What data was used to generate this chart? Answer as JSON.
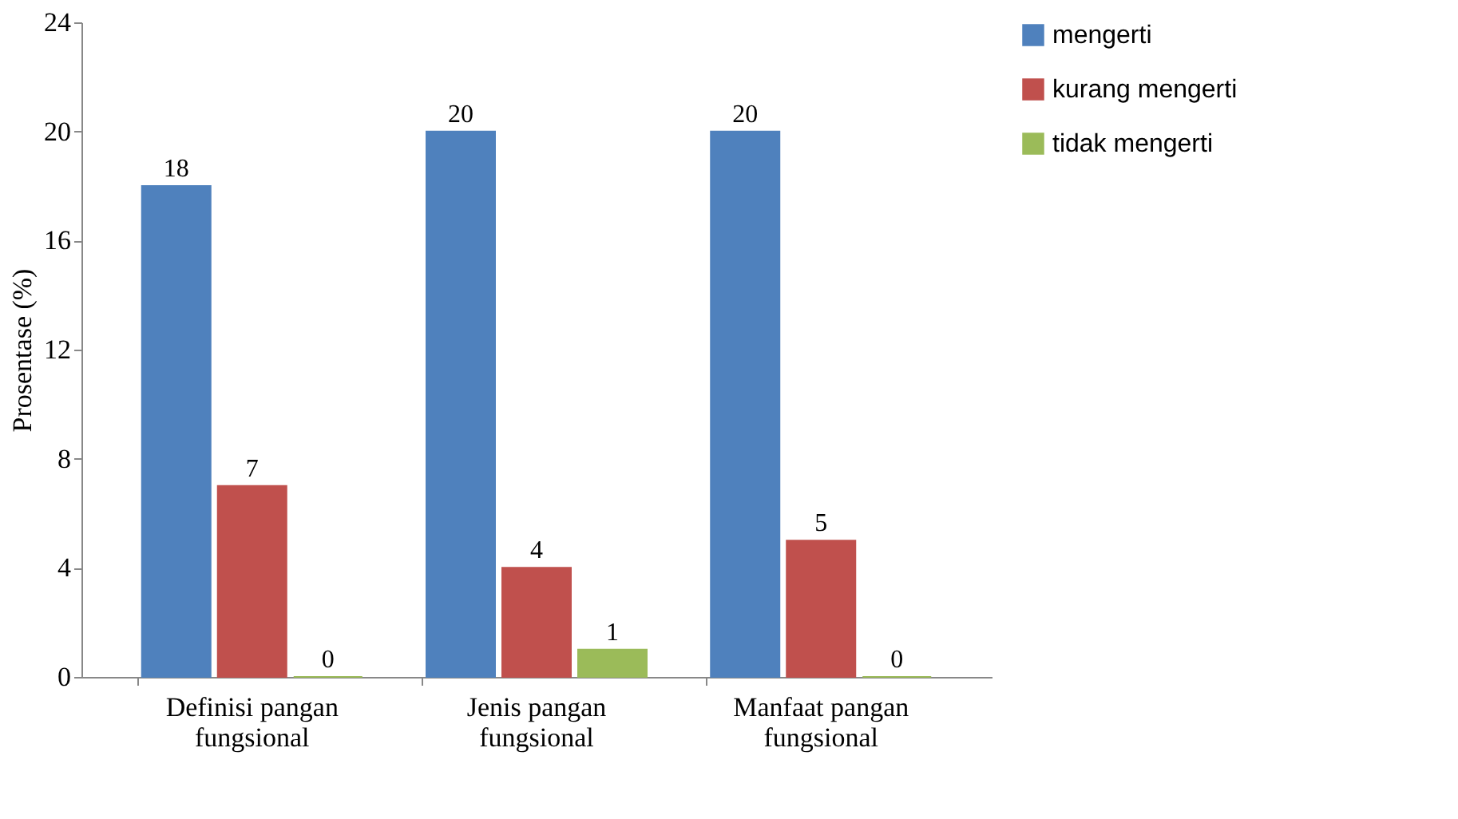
{
  "chart_data": {
    "type": "bar",
    "ylabel": "Prosentase (%)",
    "categories": [
      "Definisi pangan fungsional",
      "Jenis pangan fungsional",
      "Manfaat pangan fungsional"
    ],
    "series": [
      {
        "name": "mengerti",
        "color": "#4f81bd",
        "values": [
          18,
          20,
          20
        ]
      },
      {
        "name": "kurang mengerti",
        "color": "#c0504d",
        "values": [
          7,
          4,
          5
        ]
      },
      {
        "name": "tidak mengerti",
        "color": "#9bbb59",
        "values": [
          0,
          1,
          0
        ]
      }
    ],
    "ylim": [
      0,
      24
    ],
    "yticks": [
      0,
      4,
      8,
      12,
      16,
      20,
      24
    ],
    "grid": false,
    "legend": "right",
    "data_labels": true
  }
}
